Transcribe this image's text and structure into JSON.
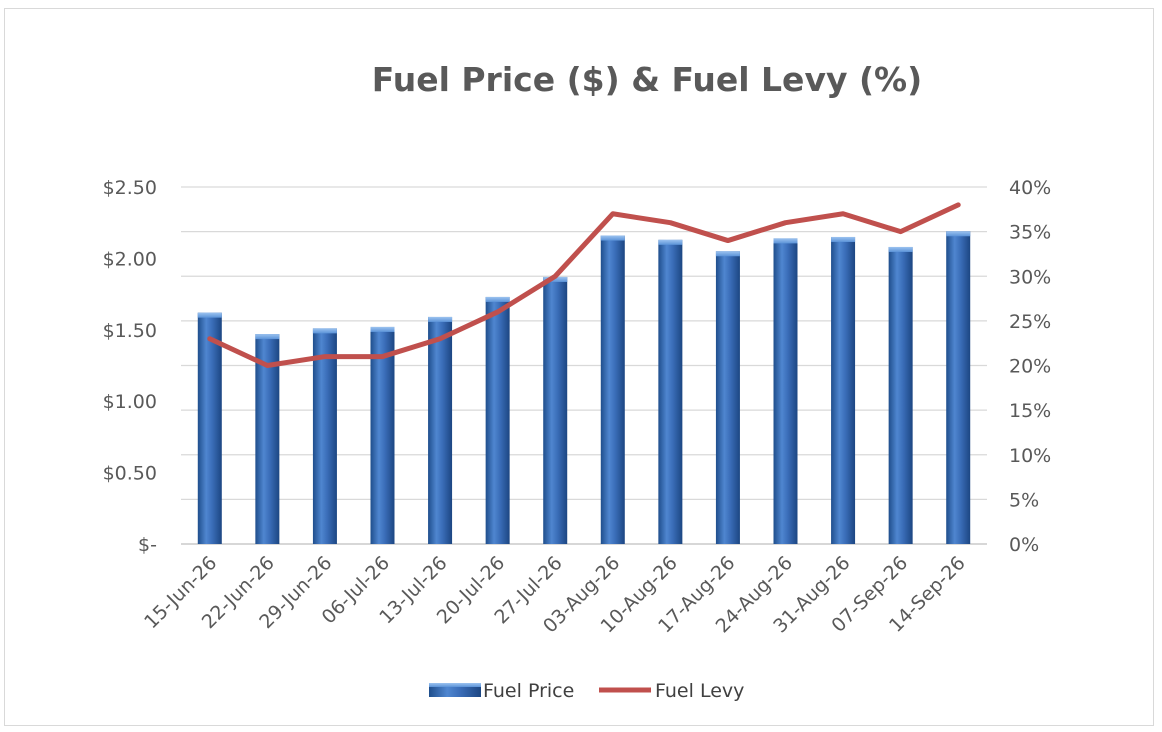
{
  "chart_data": {
    "type": "bar",
    "title": "Fuel Price ($) & Fuel Levy (%)",
    "categories": [
      "15-Jun-26",
      "22-Jun-26",
      "29-Jun-26",
      "06-Jul-26",
      "13-Jul-26",
      "20-Jul-26",
      "27-Jul-26",
      "03-Aug-26",
      "10-Aug-26",
      "17-Aug-26",
      "24-Aug-26",
      "31-Aug-26",
      "07-Sep-26",
      "14-Sep-26"
    ],
    "series": [
      {
        "name": "Fuel Price",
        "type": "bar",
        "axis": "left",
        "color": "#2E64B3",
        "values": [
          1.62,
          1.47,
          1.51,
          1.52,
          1.59,
          1.73,
          1.87,
          2.16,
          2.13,
          2.05,
          2.14,
          2.15,
          2.08,
          2.19
        ]
      },
      {
        "name": "Fuel Levy",
        "type": "line",
        "axis": "right",
        "color": "#C0504D",
        "values": [
          23,
          20,
          21,
          21,
          23,
          26,
          30,
          37,
          36,
          34,
          36,
          37,
          35,
          38
        ]
      }
    ],
    "y_left": {
      "min": 0,
      "max": 2.5,
      "step": 0.5,
      "tick_labels": [
        "$-",
        "$0.50",
        "$1.00",
        "$1.50",
        "$2.00",
        "$2.50"
      ]
    },
    "y_right": {
      "min": 0,
      "max": 40,
      "step": 5,
      "tick_labels": [
        "0%",
        "5%",
        "10%",
        "15%",
        "20%",
        "25%",
        "30%",
        "35%",
        "40%"
      ]
    },
    "grid": true,
    "legend_position": "bottom"
  }
}
